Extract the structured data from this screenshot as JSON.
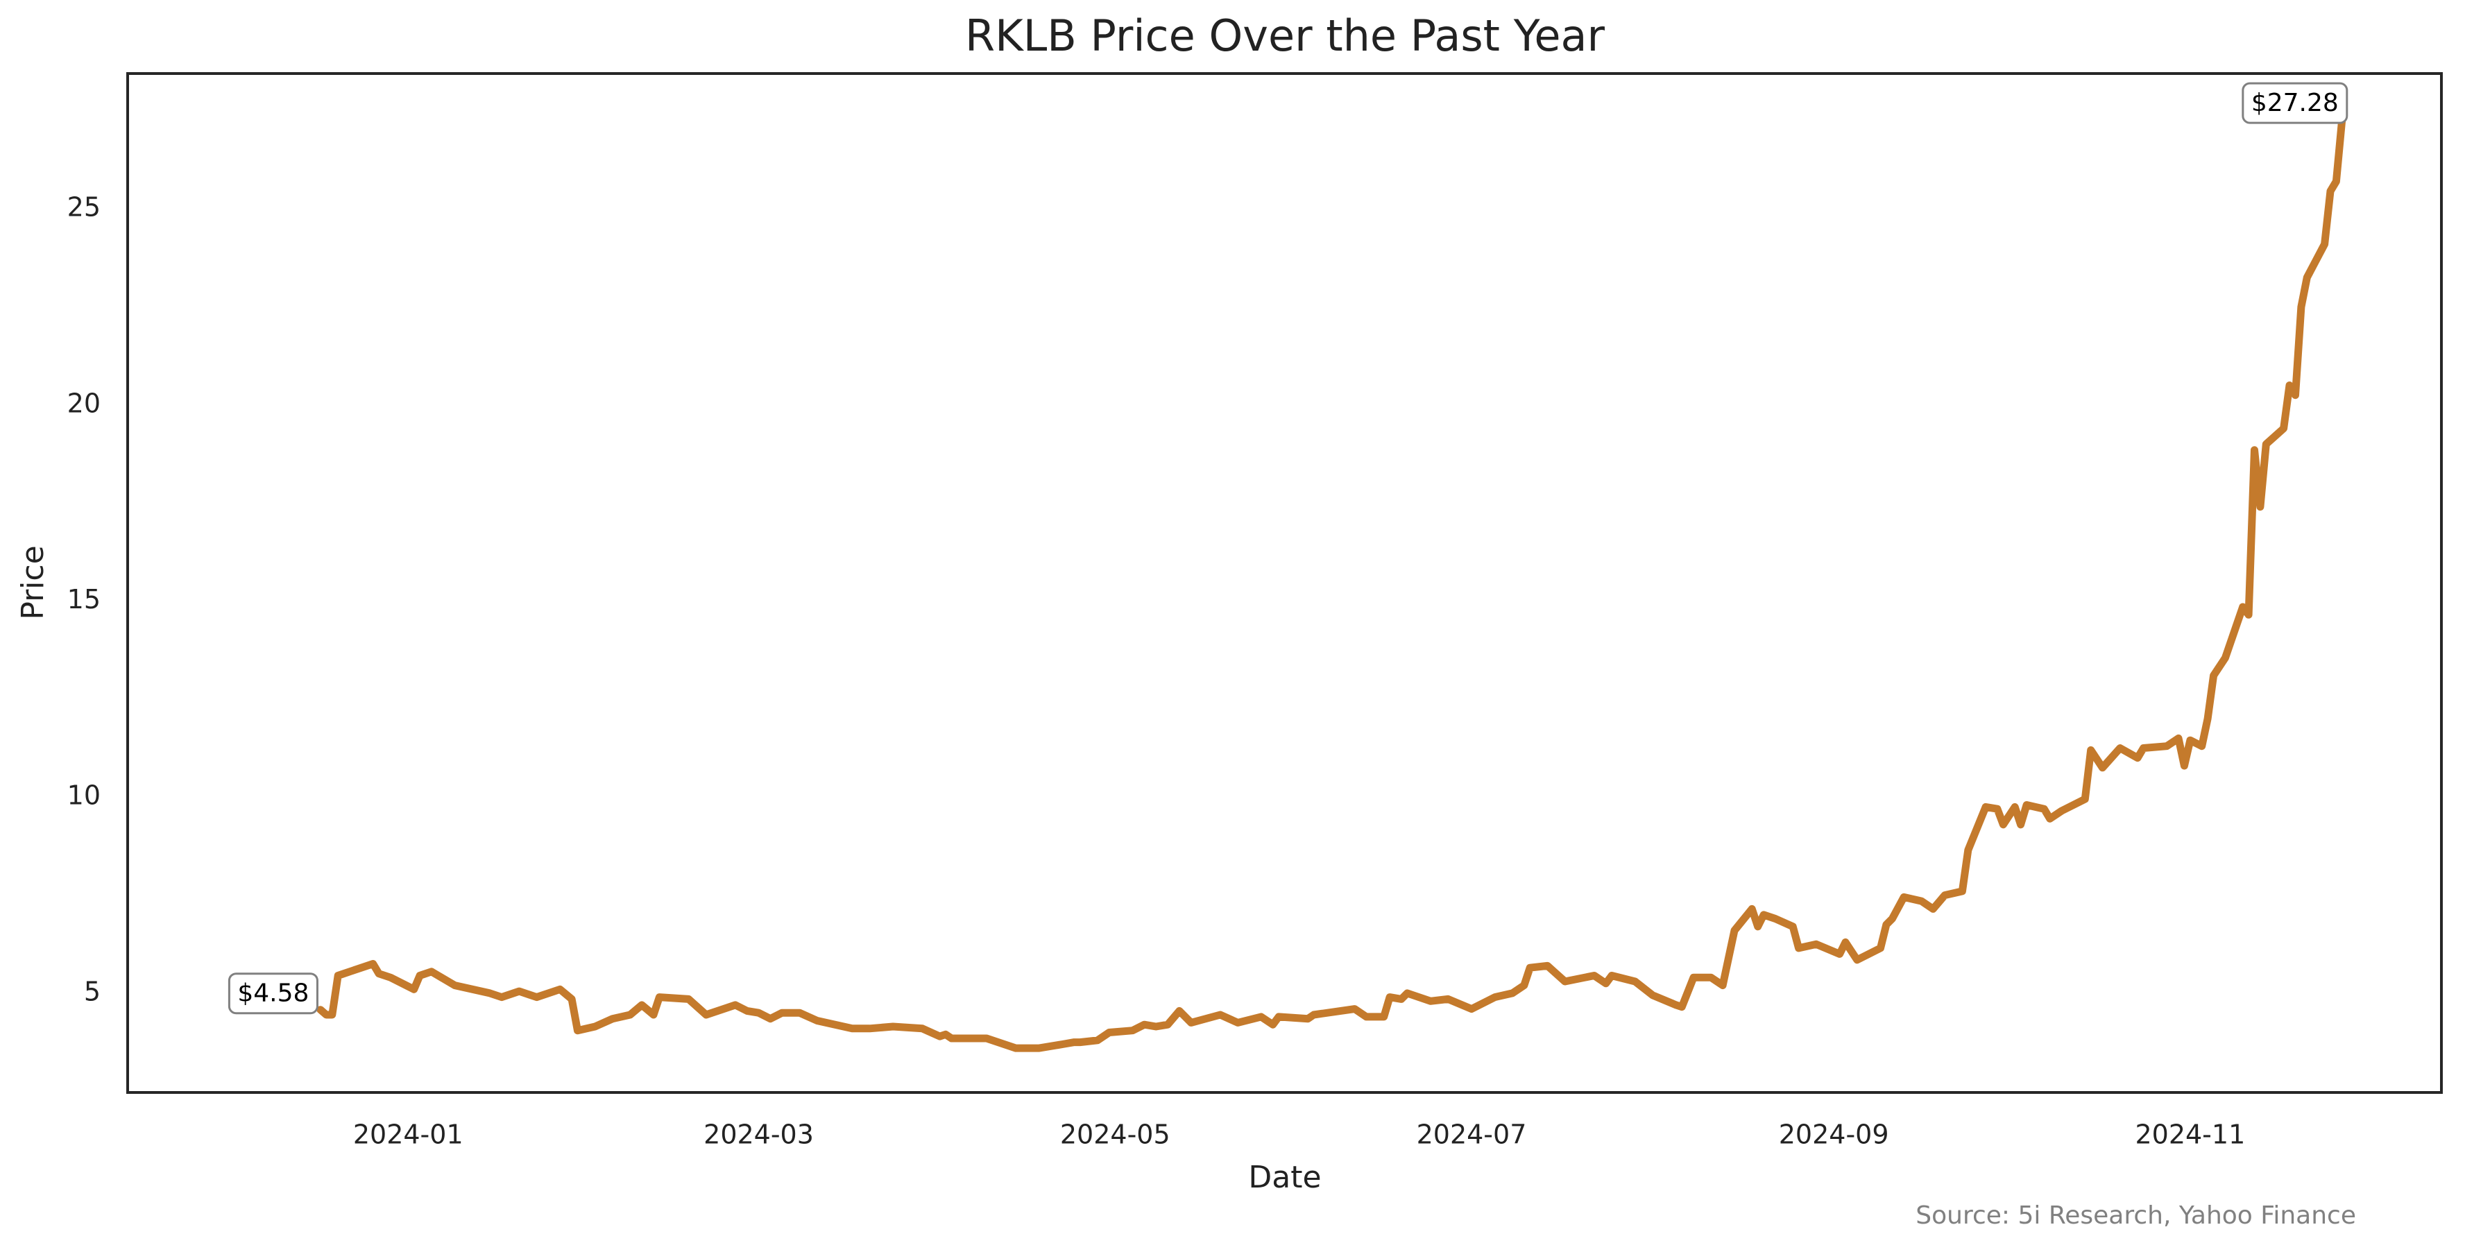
{
  "chart_data": {
    "type": "line",
    "title": "RKLB Price Over the Past Year",
    "xlabel": "Date",
    "ylabel": "Price",
    "source": "Source: 5i Research, Yahoo Finance",
    "x": [
      "2023-12-17",
      "2023-12-18",
      "2023-12-19",
      "2023-12-20",
      "2023-12-22",
      "2023-12-26",
      "2023-12-27",
      "2023-12-29",
      "2024-01-02",
      "2024-01-03",
      "2024-01-05",
      "2024-01-09",
      "2024-01-15",
      "2024-01-17",
      "2024-01-20",
      "2024-01-23",
      "2024-01-27",
      "2024-01-29",
      "2024-01-30",
      "2024-02-02",
      "2024-02-05",
      "2024-02-08",
      "2024-02-10",
      "2024-02-12",
      "2024-02-13",
      "2024-02-18",
      "2024-02-21",
      "2024-02-26",
      "2024-02-28",
      "2024-03-01",
      "2024-03-03",
      "2024-03-05",
      "2024-03-08",
      "2024-03-11",
      "2024-03-17",
      "2024-03-20",
      "2024-03-24",
      "2024-03-29",
      "2024-04-01",
      "2024-04-02",
      "2024-04-03",
      "2024-04-07",
      "2024-04-09",
      "2024-04-11",
      "2024-04-14",
      "2024-04-18",
      "2024-04-22",
      "2024-04-24",
      "2024-04-25",
      "2024-04-28",
      "2024-04-30",
      "2024-05-04",
      "2024-05-06",
      "2024-05-08",
      "2024-05-10",
      "2024-05-12",
      "2024-05-14",
      "2024-05-19",
      "2024-05-22",
      "2024-05-26",
      "2024-05-28",
      "2024-05-29",
      "2024-06-03",
      "2024-06-04",
      "2024-06-11",
      "2024-06-13",
      "2024-06-16",
      "2024-06-17",
      "2024-06-19",
      "2024-06-20",
      "2024-06-24",
      "2024-06-27",
      "2024-07-01",
      "2024-07-05",
      "2024-07-08",
      "2024-07-10",
      "2024-07-11",
      "2024-07-14",
      "2024-07-17",
      "2024-07-22",
      "2024-07-24",
      "2024-07-25",
      "2024-07-29",
      "2024-08-01",
      "2024-08-05",
      "2024-08-06",
      "2024-08-08",
      "2024-08-11",
      "2024-08-13",
      "2024-08-15",
      "2024-08-18",
      "2024-08-19",
      "2024-08-20",
      "2024-08-22",
      "2024-08-25",
      "2024-08-26",
      "2024-08-29",
      "2024-09-02",
      "2024-09-03",
      "2024-09-05",
      "2024-09-09",
      "2024-09-10",
      "2024-09-11",
      "2024-09-13",
      "2024-09-16",
      "2024-09-18",
      "2024-09-20",
      "2024-09-23",
      "2024-09-24",
      "2024-09-27",
      "2024-09-29",
      "2024-09-30",
      "2024-10-02",
      "2024-10-03",
      "2024-10-04",
      "2024-10-07",
      "2024-10-08",
      "2024-10-10",
      "2024-10-14",
      "2024-10-15",
      "2024-10-17",
      "2024-10-20",
      "2024-10-23",
      "2024-10-24",
      "2024-10-28",
      "2024-10-30",
      "2024-10-31",
      "2024-11-01",
      "2024-11-03",
      "2024-11-04",
      "2024-11-05",
      "2024-11-07",
      "2024-11-10",
      "2024-11-11",
      "2024-11-12",
      "2024-11-13",
      "2024-11-14",
      "2024-11-17",
      "2024-11-18",
      "2024-11-19",
      "2024-11-20",
      "2024-11-21",
      "2024-11-24",
      "2024-11-25",
      "2024-11-26",
      "2024-11-27"
    ],
    "series": [
      {
        "name": "RKLB",
        "color": "#c47a2c",
        "values": [
          4.58,
          4.45,
          4.45,
          5.45,
          5.55,
          5.75,
          5.5,
          5.4,
          5.1,
          5.45,
          5.55,
          5.2,
          5.0,
          4.9,
          5.05,
          4.9,
          5.1,
          4.85,
          4.05,
          4.15,
          4.35,
          4.45,
          4.7,
          4.45,
          4.9,
          4.85,
          4.45,
          4.7,
          4.55,
          4.5,
          4.35,
          4.5,
          4.5,
          4.3,
          4.1,
          4.1,
          4.15,
          4.1,
          3.9,
          3.95,
          3.85,
          3.85,
          3.85,
          3.75,
          3.6,
          3.6,
          3.7,
          3.75,
          3.75,
          3.8,
          4.0,
          4.05,
          4.2,
          4.15,
          4.2,
          4.55,
          4.25,
          4.45,
          4.25,
          4.4,
          4.2,
          4.4,
          4.35,
          4.45,
          4.6,
          4.4,
          4.4,
          4.9,
          4.85,
          5.0,
          4.8,
          4.85,
          4.6,
          4.9,
          5.0,
          5.2,
          5.65,
          5.7,
          5.3,
          5.45,
          5.25,
          5.45,
          5.3,
          4.95,
          4.7,
          4.65,
          5.4,
          5.4,
          5.2,
          6.6,
          7.15,
          6.7,
          7.0,
          6.9,
          6.7,
          6.15,
          6.25,
          6.0,
          6.3,
          5.85,
          6.15,
          6.75,
          6.9,
          7.45,
          7.35,
          7.15,
          7.5,
          7.6,
          8.65,
          9.75,
          9.7,
          9.3,
          9.75,
          9.3,
          9.8,
          9.7,
          9.45,
          9.65,
          9.95,
          11.2,
          10.75,
          11.25,
          11.0,
          11.25,
          11.3,
          11.5,
          10.8,
          11.45,
          11.3,
          12.0,
          13.1,
          13.55,
          14.85,
          14.65,
          18.85,
          17.4,
          19.0,
          19.4,
          20.5,
          20.25,
          22.5,
          23.25,
          24.1,
          25.45,
          25.7,
          27.28
        ]
      }
    ],
    "annotations": [
      {
        "x": "2023-12-17",
        "y": 4.58,
        "label": "$4.58"
      },
      {
        "x": "2024-11-27",
        "y": 27.28,
        "label": "$27.28"
      }
    ],
    "xlim": [
      "2023-11-14",
      "2024-12-14"
    ],
    "xticks": [
      {
        "value": "2024-01-01",
        "label": "2024-01"
      },
      {
        "value": "2024-03-01",
        "label": "2024-03"
      },
      {
        "value": "2024-05-01",
        "label": "2024-05"
      },
      {
        "value": "2024-07-01",
        "label": "2024-07"
      },
      {
        "value": "2024-09-01",
        "label": "2024-09"
      },
      {
        "value": "2024-11-01",
        "label": "2024-11"
      }
    ],
    "ylim": [
      2.47,
      28.45
    ],
    "yticks": [
      5,
      10,
      15,
      20,
      25
    ],
    "grid": false
  }
}
